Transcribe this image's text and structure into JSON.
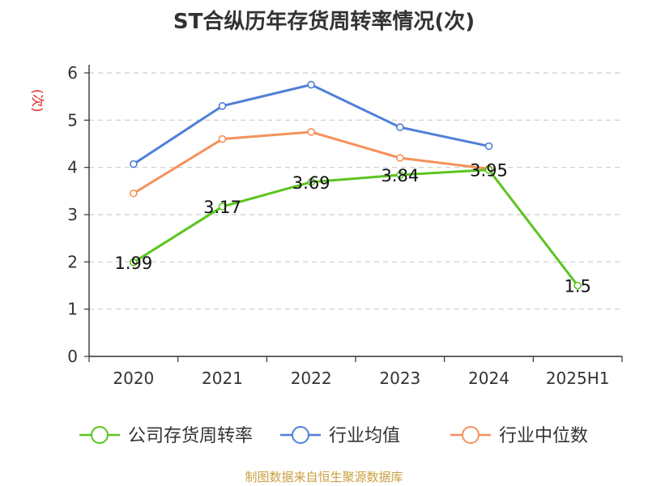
{
  "title": "ST合纵历年存货周转率情况(次)",
  "footer": "制图数据来自恒生聚源数据库",
  "chart_data": {
    "type": "line",
    "title": "ST合纵历年存货周转率情况(次)",
    "ylabel": "(次)",
    "xlabel": "",
    "categories": [
      "2020",
      "2021",
      "2022",
      "2023",
      "2024",
      "2025H1"
    ],
    "ylim": [
      0,
      6
    ],
    "yticks": [
      0,
      1,
      2,
      3,
      4,
      5,
      6
    ],
    "grid": true,
    "legend_position": "bottom",
    "series": [
      {
        "name": "公司存货周转率",
        "color": "#5cc420",
        "values": [
          1.99,
          3.17,
          3.69,
          3.84,
          3.95,
          1.5
        ],
        "labels": [
          "1.99",
          "3.17",
          "3.69",
          "3.84",
          "3.95",
          "1.5"
        ]
      },
      {
        "name": "行业均值",
        "color": "#4f7fd8",
        "values": [
          4.07,
          5.3,
          5.75,
          4.85,
          4.45,
          null
        ]
      },
      {
        "name": "行业中位数",
        "color": "#f5915a",
        "values": [
          3.45,
          4.6,
          4.75,
          4.2,
          3.97,
          null
        ]
      }
    ]
  }
}
